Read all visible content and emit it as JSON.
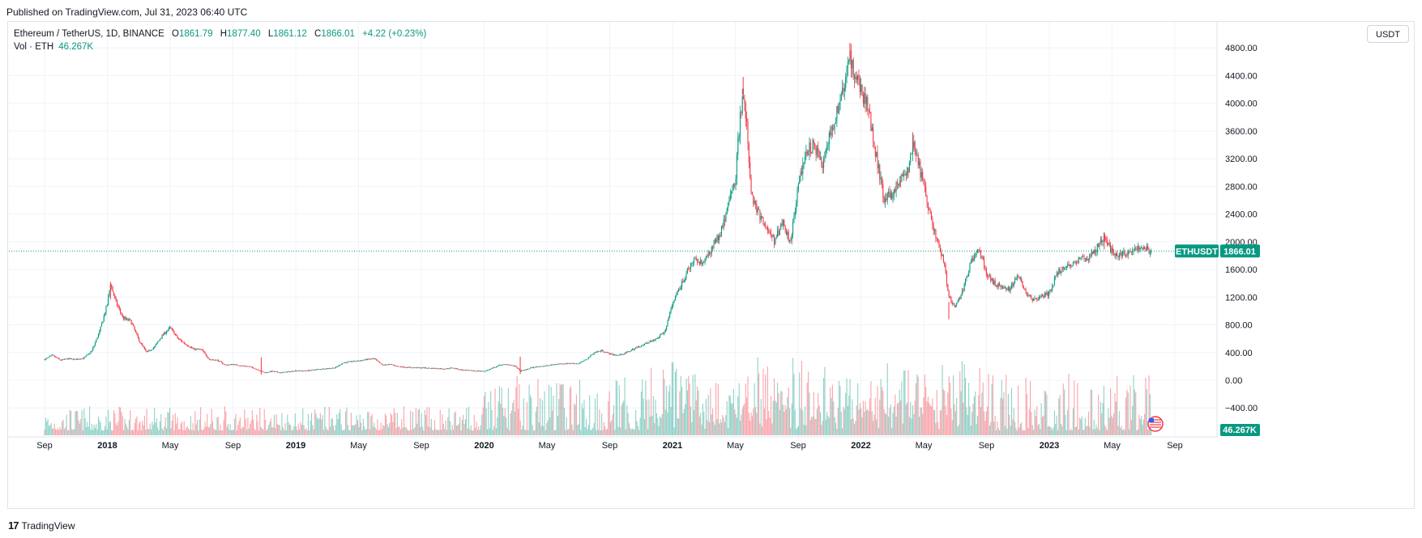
{
  "header": {
    "published": "Published on TradingView.com, Jul 31, 2023 06:40 UTC"
  },
  "legend": {
    "symbol": "Ethereum / TetherUS, 1D, BINANCE",
    "open_label": "O",
    "open": "1861.79",
    "high_label": "H",
    "high": "1877.40",
    "low_label": "L",
    "low": "1861.12",
    "close_label": "C",
    "close": "1866.01",
    "change": "+4.22 (+0.23%)",
    "vol_label": "Vol · ETH",
    "vol_value": "46.267K"
  },
  "currency_button": "USDT",
  "footer": {
    "logo_mark": "17",
    "brand": "TradingView"
  },
  "colors": {
    "up": "#089981",
    "down": "#f23645",
    "grid": "#f0f3fa",
    "price_line": "#089981"
  },
  "chart_data": {
    "type": "candlestick",
    "title": "Ethereum / TetherUS, 1D, BINANCE",
    "symbol_tag": "ETHUSDT",
    "last_price_label": "1866.01",
    "last_price": 1866.01,
    "volume_label": "46.267K",
    "y_axis": {
      "ticks": [
        "4800.00",
        "4400.00",
        "4000.00",
        "3600.00",
        "3200.00",
        "2800.00",
        "2400.00",
        "2000.00",
        "1600.00",
        "1200.00",
        "800.00",
        "400.00",
        "0.00",
        "−400.00"
      ],
      "tick_values": [
        4800,
        4400,
        4000,
        3600,
        3200,
        2800,
        2400,
        2000,
        1600,
        1200,
        800,
        400,
        0,
        -400
      ],
      "ylim": [
        -800,
        5000
      ]
    },
    "x_axis": {
      "ticks": [
        {
          "label": "Sep",
          "t": 0.0,
          "bold": false
        },
        {
          "label": "2018",
          "t": 4.0,
          "bold": true
        },
        {
          "label": "May",
          "t": 8.0,
          "bold": false
        },
        {
          "label": "Sep",
          "t": 12.0,
          "bold": false
        },
        {
          "label": "2019",
          "t": 16.0,
          "bold": true
        },
        {
          "label": "May",
          "t": 20.0,
          "bold": false
        },
        {
          "label": "Sep",
          "t": 24.0,
          "bold": false
        },
        {
          "label": "2020",
          "t": 28.0,
          "bold": true
        },
        {
          "label": "May",
          "t": 32.0,
          "bold": false
        },
        {
          "label": "Sep",
          "t": 36.0,
          "bold": false
        },
        {
          "label": "2021",
          "t": 40.0,
          "bold": true
        },
        {
          "label": "May",
          "t": 44.0,
          "bold": false
        },
        {
          "label": "Sep",
          "t": 48.0,
          "bold": false
        },
        {
          "label": "2022",
          "t": 52.0,
          "bold": true
        },
        {
          "label": "May",
          "t": 56.0,
          "bold": false
        },
        {
          "label": "Sep",
          "t": 60.0,
          "bold": false
        },
        {
          "label": "2023",
          "t": 64.0,
          "bold": true
        },
        {
          "label": "May",
          "t": 68.0,
          "bold": false
        },
        {
          "label": "Sep",
          "t": 72.0,
          "bold": false
        }
      ],
      "unit": "months since Sep 2017"
    },
    "series_price_close": [
      [
        0,
        300
      ],
      [
        0.5,
        360
      ],
      [
        1,
        290
      ],
      [
        1.5,
        310
      ],
      [
        2,
        300
      ],
      [
        2.5,
        320
      ],
      [
        3,
        420
      ],
      [
        3.5,
        700
      ],
      [
        4,
        1100
      ],
      [
        4.2,
        1400
      ],
      [
        4.5,
        1150
      ],
      [
        5,
        900
      ],
      [
        5.5,
        850
      ],
      [
        6,
        580
      ],
      [
        6.5,
        400
      ],
      [
        7,
        480
      ],
      [
        7.5,
        650
      ],
      [
        8,
        760
      ],
      [
        8.5,
        600
      ],
      [
        9,
        520
      ],
      [
        9.5,
        450
      ],
      [
        10,
        440
      ],
      [
        10.5,
        300
      ],
      [
        11,
        290
      ],
      [
        11.5,
        220
      ],
      [
        12,
        230
      ],
      [
        12.5,
        210
      ],
      [
        13,
        200
      ],
      [
        13.5,
        160
      ],
      [
        14,
        110
      ],
      [
        14.5,
        130
      ],
      [
        15,
        110
      ],
      [
        15.5,
        120
      ],
      [
        16,
        140
      ],
      [
        16.5,
        135
      ],
      [
        17,
        145
      ],
      [
        17.5,
        160
      ],
      [
        18,
        170
      ],
      [
        18.5,
        180
      ],
      [
        19,
        250
      ],
      [
        19.5,
        270
      ],
      [
        20,
        280
      ],
      [
        20.5,
        300
      ],
      [
        21,
        310
      ],
      [
        21.5,
        220
      ],
      [
        22,
        230
      ],
      [
        22.5,
        200
      ],
      [
        23,
        190
      ],
      [
        23.5,
        180
      ],
      [
        24,
        180
      ],
      [
        24.5,
        175
      ],
      [
        25,
        170
      ],
      [
        25.5,
        165
      ],
      [
        26,
        180
      ],
      [
        26.5,
        150
      ],
      [
        27,
        140
      ],
      [
        27.5,
        135
      ],
      [
        28,
        130
      ],
      [
        28.5,
        170
      ],
      [
        29,
        220
      ],
      [
        29.5,
        230
      ],
      [
        30,
        200
      ],
      [
        30.3,
        130
      ],
      [
        30.6,
        150
      ],
      [
        31,
        180
      ],
      [
        31.5,
        200
      ],
      [
        32,
        210
      ],
      [
        32.5,
        230
      ],
      [
        33,
        240
      ],
      [
        33.5,
        245
      ],
      [
        34,
        240
      ],
      [
        34.5,
        300
      ],
      [
        35,
        400
      ],
      [
        35.5,
        430
      ],
      [
        36,
        380
      ],
      [
        36.5,
        360
      ],
      [
        37,
        390
      ],
      [
        37.5,
        450
      ],
      [
        38,
        500
      ],
      [
        38.5,
        560
      ],
      [
        39,
        600
      ],
      [
        39.5,
        700
      ],
      [
        40,
        1100
      ],
      [
        40.5,
        1350
      ],
      [
        41,
        1600
      ],
      [
        41.5,
        1750
      ],
      [
        42,
        1700
      ],
      [
        42.5,
        1900
      ],
      [
        43,
        2100
      ],
      [
        43.5,
        2500
      ],
      [
        44,
        2900
      ],
      [
        44.3,
        3800
      ],
      [
        44.5,
        4100
      ],
      [
        44.8,
        3500
      ],
      [
        45,
        2700
      ],
      [
        45.5,
        2400
      ],
      [
        46,
        2200
      ],
      [
        46.5,
        2000
      ],
      [
        47,
        2300
      ],
      [
        47.5,
        2000
      ],
      [
        48,
        2800
      ],
      [
        48.5,
        3300
      ],
      [
        49,
        3400
      ],
      [
        49.5,
        3100
      ],
      [
        50,
        3500
      ],
      [
        50.5,
        3900
      ],
      [
        51,
        4300
      ],
      [
        51.3,
        4700
      ],
      [
        51.6,
        4400
      ],
      [
        52,
        4200
      ],
      [
        52.5,
        3900
      ],
      [
        53,
        3200
      ],
      [
        53.5,
        2600
      ],
      [
        54,
        2700
      ],
      [
        54.5,
        2900
      ],
      [
        55,
        3000
      ],
      [
        55.3,
        3400
      ],
      [
        55.6,
        3200
      ],
      [
        56,
        2800
      ],
      [
        56.5,
        2300
      ],
      [
        57,
        1900
      ],
      [
        57.3,
        1700
      ],
      [
        57.6,
        1200
      ],
      [
        58,
        1050
      ],
      [
        58.5,
        1300
      ],
      [
        59,
        1700
      ],
      [
        59.5,
        1900
      ],
      [
        60,
        1550
      ],
      [
        60.5,
        1400
      ],
      [
        61,
        1350
      ],
      [
        61.5,
        1300
      ],
      [
        62,
        1550
      ],
      [
        62.5,
        1250
      ],
      [
        63,
        1150
      ],
      [
        63.5,
        1200
      ],
      [
        64,
        1250
      ],
      [
        64.5,
        1550
      ],
      [
        65,
        1650
      ],
      [
        65.5,
        1650
      ],
      [
        66,
        1800
      ],
      [
        66.5,
        1750
      ],
      [
        67,
        1900
      ],
      [
        67.5,
        2050
      ],
      [
        68,
        1850
      ],
      [
        68.5,
        1800
      ],
      [
        69,
        1850
      ],
      [
        69.5,
        1900
      ],
      [
        70,
        1900
      ],
      [
        70.5,
        1870
      ]
    ],
    "high_points": [
      [
        4.2,
        1420
      ],
      [
        44.5,
        4380
      ],
      [
        51.3,
        4870
      ],
      [
        55.3,
        3580
      ],
      [
        67.5,
        2140
      ]
    ],
    "low_points": [
      [
        13.8,
        82
      ],
      [
        30.3,
        90
      ],
      [
        57.6,
        880
      ]
    ]
  }
}
